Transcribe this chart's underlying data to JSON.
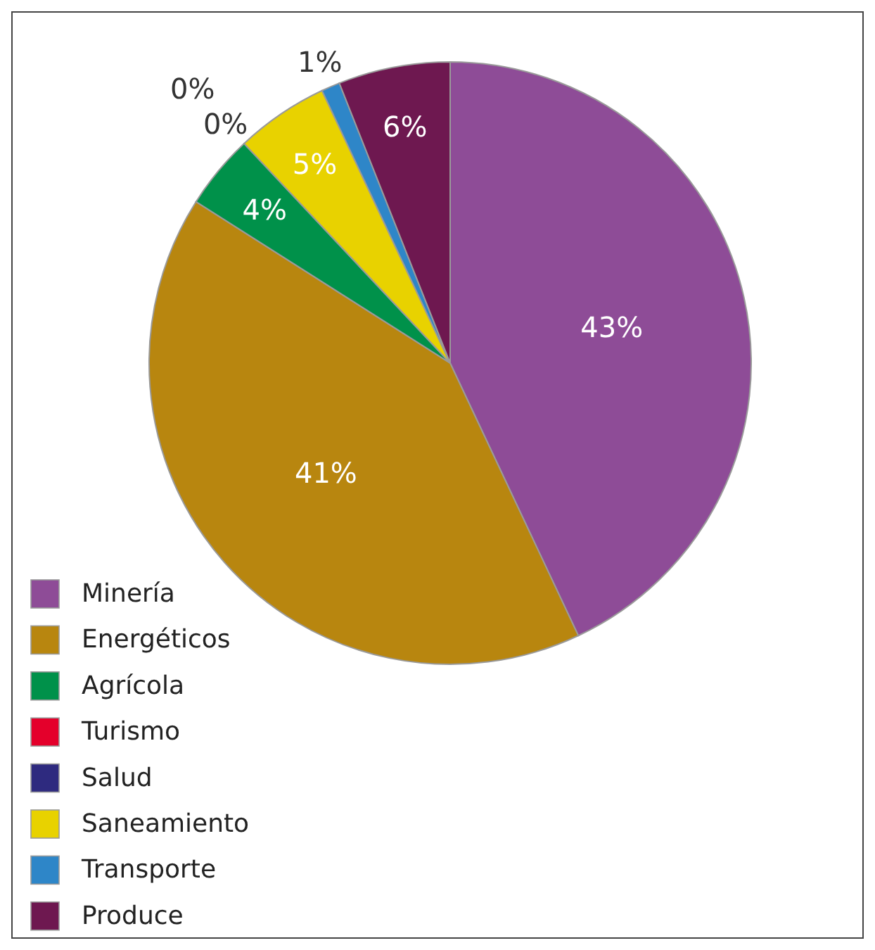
{
  "chart_data": {
    "type": "pie",
    "categories": [
      "Minería",
      "Energéticos",
      "Agrícola",
      "Turismo",
      "Salud",
      "Saneamiento",
      "Transporte",
      "Produce"
    ],
    "values": [
      43,
      41,
      4,
      0,
      0,
      5,
      1,
      6
    ],
    "colors": [
      "#8e4c97",
      "#b8860f",
      "#00914a",
      "#e4002b",
      "#2e2a7f",
      "#e8d200",
      "#2e86c8",
      "#6e1850"
    ],
    "value_labels": [
      "43%",
      "41%",
      "4%",
      "0%",
      "0%",
      "5%",
      "1%",
      "6%"
    ],
    "legend": "bottom left"
  }
}
